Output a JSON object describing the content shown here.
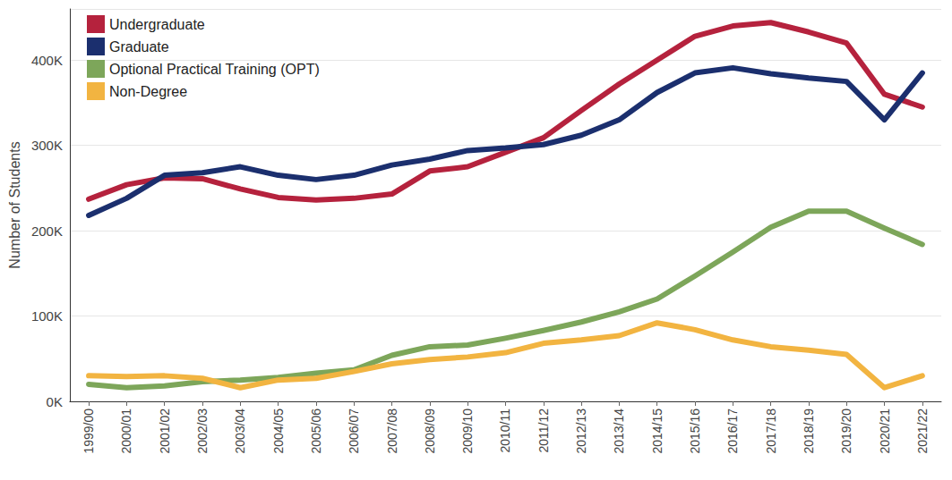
{
  "chart_data": {
    "type": "line",
    "y_label": "Number of Students",
    "categories": [
      "1999/00",
      "2000/01",
      "2001/02",
      "2002/03",
      "2003/04",
      "2004/05",
      "2005/06",
      "2006/07",
      "2007/08",
      "2008/09",
      "2009/10",
      "2010/11",
      "2011/12",
      "2012/13",
      "2013/14",
      "2014/15",
      "2015/16",
      "2016/17",
      "2017/18",
      "2018/19",
      "2019/20",
      "2020/21",
      "2021/22"
    ],
    "series": [
      {
        "name": "Undergraduate",
        "color": "#b5223d",
        "values": [
          237000,
          254000,
          262000,
          261000,
          249000,
          239000,
          236000,
          238000,
          243000,
          270000,
          275000,
          292000,
          309000,
          341000,
          372000,
          400000,
          428000,
          440000,
          444000,
          433000,
          420000,
          360000,
          345000
        ]
      },
      {
        "name": "Graduate",
        "color": "#1b2f6e",
        "values": [
          218000,
          238000,
          265000,
          268000,
          275000,
          265000,
          260000,
          265000,
          277000,
          284000,
          294000,
          297000,
          301000,
          312000,
          330000,
          362000,
          385000,
          391000,
          384000,
          379000,
          375000,
          330000,
          385000
        ]
      },
      {
        "name": "Optional Practical Training (OPT)",
        "color": "#7da65a",
        "values": [
          20000,
          16000,
          18000,
          23000,
          25000,
          28000,
          33000,
          37000,
          54000,
          64000,
          66000,
          74000,
          83000,
          93000,
          105000,
          120000,
          147000,
          175000,
          204000,
          223000,
          223000,
          203000,
          184000
        ]
      },
      {
        "name": "Non-Degree",
        "color": "#f2b441",
        "values": [
          30000,
          29000,
          30000,
          27000,
          16000,
          25000,
          27000,
          35000,
          44000,
          49000,
          52000,
          57000,
          68000,
          72000,
          77000,
          92000,
          84000,
          72000,
          64000,
          60000,
          55000,
          16000,
          30000
        ]
      }
    ],
    "ylim": [
      0,
      460000
    ],
    "yticks": [
      {
        "value": 0,
        "label": "0K"
      },
      {
        "value": 100000,
        "label": "100K"
      },
      {
        "value": 200000,
        "label": "200K"
      },
      {
        "value": 300000,
        "label": "300K"
      },
      {
        "value": 400000,
        "label": "400K"
      }
    ],
    "grid": true,
    "legend": "top-left"
  }
}
